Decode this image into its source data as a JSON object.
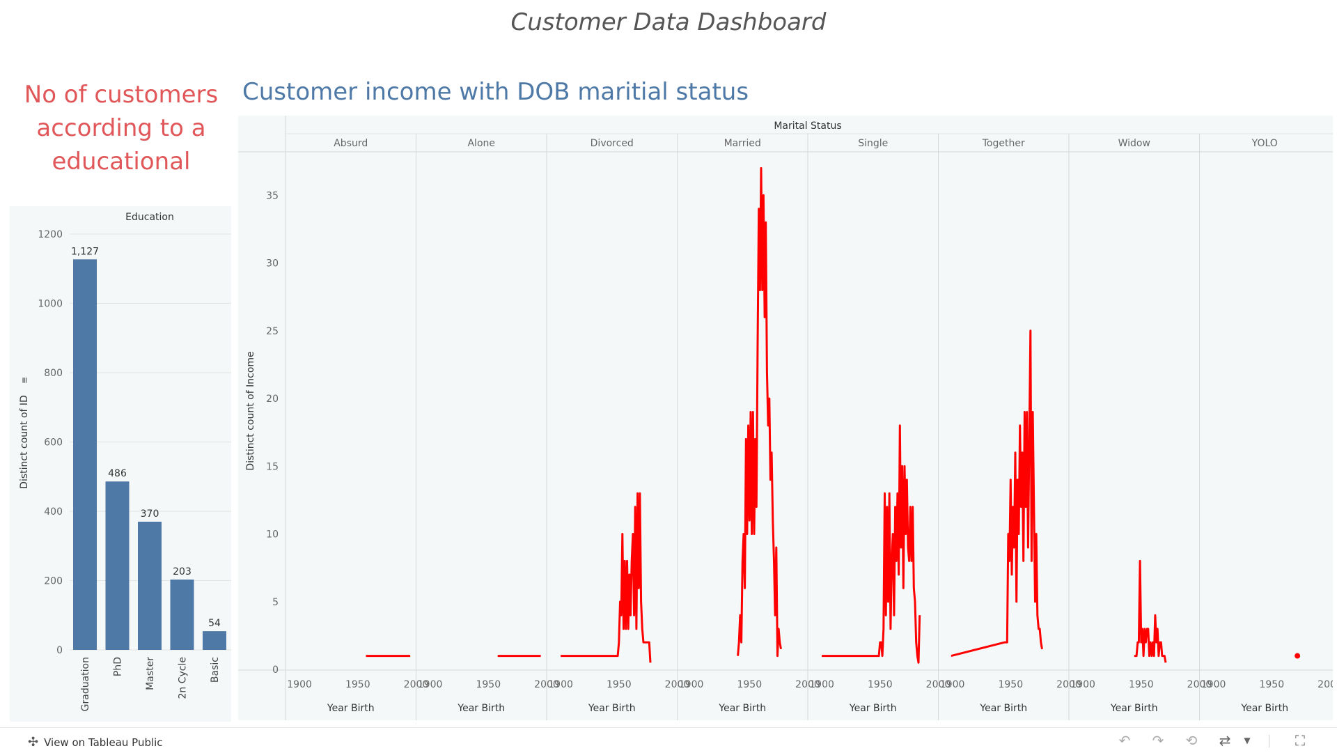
{
  "dashboard": {
    "title": "Customer Data Dashboard",
    "left_title": "No  of customers according to a educational",
    "right_title": "Customer income with DOB maritial status"
  },
  "footer": {
    "tableau_link": "View on Tableau Public",
    "icons": [
      "undo-icon",
      "redo-icon",
      "revert-icon",
      "share-icon",
      "dropdown-icon",
      "fullscreen-icon"
    ]
  },
  "colors": {
    "bar": "#4e79a7",
    "line": "#ff0000",
    "panel_bg": "#f4f8f8",
    "left_title": "#e15759",
    "right_title": "#4e79a7"
  },
  "chart_data": [
    {
      "type": "bar",
      "column_header": "Education",
      "ylabel": "Distinct count of ID",
      "categories": [
        "Graduation",
        "PhD",
        "Master",
        "2n Cycle",
        "Basic"
      ],
      "values": [
        1127,
        486,
        370,
        203,
        54
      ],
      "value_labels": [
        "1,127",
        "486",
        "370",
        "203",
        "54"
      ],
      "ylim": [
        0,
        1200
      ],
      "yticks": [
        0,
        200,
        400,
        600,
        800,
        1000,
        1200
      ],
      "grid": true
    },
    {
      "type": "line",
      "facet_header": "Marital Status",
      "xlabel": "Year Birth",
      "ylabel": "Distinct count of Income",
      "ylim": [
        0,
        38
      ],
      "yticks": [
        0,
        5,
        10,
        15,
        20,
        25,
        30,
        35
      ],
      "xlim": [
        1888,
        2000
      ],
      "xticks": [
        1900,
        1950,
        2000
      ],
      "panels": [
        {
          "name": "Absurd",
          "points": [
            [
              1957,
              1
            ],
            [
              1995,
              1
            ]
          ]
        },
        {
          "name": "Alone",
          "points": [
            [
              1958,
              1
            ],
            [
              1970,
              1
            ],
            [
              1975,
              1
            ],
            [
              1995,
              1
            ]
          ]
        },
        {
          "name": "Divorced",
          "points": [
            [
              1900,
              1
            ],
            [
              1940,
              1
            ],
            [
              1949,
              1
            ],
            [
              1950,
              2
            ],
            [
              1951,
              5
            ],
            [
              1952,
              4
            ],
            [
              1953,
              10
            ],
            [
              1954,
              3
            ],
            [
              1955,
              8
            ],
            [
              1956,
              3
            ],
            [
              1957,
              8
            ],
            [
              1958,
              3
            ],
            [
              1959,
              7
            ],
            [
              1960,
              4
            ],
            [
              1961,
              8
            ],
            [
              1962,
              10
            ],
            [
              1963,
              4
            ],
            [
              1964,
              12
            ],
            [
              1965,
              3
            ],
            [
              1966,
              13
            ],
            [
              1967,
              6
            ],
            [
              1968,
              13
            ],
            [
              1969,
              5
            ],
            [
              1970,
              3
            ],
            [
              1971,
              2
            ],
            [
              1974,
              2
            ],
            [
              1976,
              2
            ],
            [
              1977,
              0.5
            ]
          ]
        },
        {
          "name": "Married",
          "points": [
            [
              1940,
              1
            ],
            [
              1941,
              2
            ],
            [
              1942,
              4
            ],
            [
              1943,
              2
            ],
            [
              1944,
              8
            ],
            [
              1945,
              10
            ],
            [
              1946,
              6
            ],
            [
              1947,
              17
            ],
            [
              1948,
              10
            ],
            [
              1949,
              18
            ],
            [
              1950,
              11
            ],
            [
              1951,
              19
            ],
            [
              1952,
              10
            ],
            [
              1953,
              19
            ],
            [
              1954,
              10
            ],
            [
              1955,
              17
            ],
            [
              1956,
              12
            ],
            [
              1957,
              24
            ],
            [
              1958,
              34
            ],
            [
              1959,
              28
            ],
            [
              1960,
              37
            ],
            [
              1961,
              28
            ],
            [
              1962,
              35
            ],
            [
              1963,
              26
            ],
            [
              1964,
              33
            ],
            [
              1965,
              22
            ],
            [
              1966,
              18
            ],
            [
              1967,
              20
            ],
            [
              1968,
              14
            ],
            [
              1969,
              16
            ],
            [
              1970,
              11
            ],
            [
              1971,
              8
            ],
            [
              1972,
              4
            ],
            [
              1973,
              9
            ],
            [
              1974,
              1
            ],
            [
              1975,
              3
            ],
            [
              1976,
              2
            ],
            [
              1977,
              1.5
            ]
          ]
        },
        {
          "name": "Single",
          "points": [
            [
              1900,
              1
            ],
            [
              1943,
              1
            ],
            [
              1949,
              1
            ],
            [
              1950,
              2
            ],
            [
              1951,
              2
            ],
            [
              1952,
              1
            ],
            [
              1953,
              3
            ],
            [
              1954,
              13
            ],
            [
              1955,
              4
            ],
            [
              1956,
              12
            ],
            [
              1957,
              5
            ],
            [
              1958,
              13
            ],
            [
              1959,
              3
            ],
            [
              1960,
              8
            ],
            [
              1961,
              10
            ],
            [
              1962,
              4
            ],
            [
              1963,
              12
            ],
            [
              1964,
              8
            ],
            [
              1965,
              13
            ],
            [
              1966,
              7
            ],
            [
              1967,
              18
            ],
            [
              1968,
              9
            ],
            [
              1969,
              15
            ],
            [
              1970,
              6
            ],
            [
              1971,
              15
            ],
            [
              1972,
              10
            ],
            [
              1973,
              14
            ],
            [
              1974,
              9
            ],
            [
              1975,
              8
            ],
            [
              1976,
              12
            ],
            [
              1977,
              8
            ],
            [
              1978,
              12
            ],
            [
              1979,
              6
            ],
            [
              1980,
              5
            ],
            [
              1981,
              2
            ],
            [
              1982,
              1
            ],
            [
              1983,
              0.5
            ],
            [
              1984,
              4
            ]
          ]
        },
        {
          "name": "Together",
          "points": [
            [
              1899,
              1
            ],
            [
              1945,
              2
            ],
            [
              1947,
              2
            ],
            [
              1948,
              10
            ],
            [
              1949,
              8
            ],
            [
              1950,
              14
            ],
            [
              1951,
              7
            ],
            [
              1952,
              12
            ],
            [
              1953,
              9
            ],
            [
              1954,
              16
            ],
            [
              1955,
              5
            ],
            [
              1956,
              14
            ],
            [
              1957,
              10
            ],
            [
              1958,
              18
            ],
            [
              1959,
              12
            ],
            [
              1960,
              16
            ],
            [
              1961,
              8
            ],
            [
              1962,
              19
            ],
            [
              1963,
              12
            ],
            [
              1964,
              19
            ],
            [
              1965,
              9
            ],
            [
              1966,
              17
            ],
            [
              1967,
              25
            ],
            [
              1968,
              8
            ],
            [
              1969,
              19
            ],
            [
              1970,
              12
            ],
            [
              1971,
              5
            ],
            [
              1972,
              10
            ],
            [
              1973,
              4
            ],
            [
              1974,
              3
            ],
            [
              1975,
              3
            ],
            [
              1976,
              2
            ],
            [
              1977,
              1.5
            ]
          ]
        },
        {
          "name": "Widow",
          "points": [
            [
              1944,
              1
            ],
            [
              1946,
              1
            ],
            [
              1947,
              2
            ],
            [
              1948,
              2
            ],
            [
              1949,
              8
            ],
            [
              1950,
              2
            ],
            [
              1951,
              3
            ],
            [
              1952,
              1
            ],
            [
              1953,
              3
            ],
            [
              1954,
              2
            ],
            [
              1955,
              3
            ],
            [
              1956,
              3
            ],
            [
              1957,
              1
            ],
            [
              1958,
              2
            ],
            [
              1959,
              1
            ],
            [
              1960,
              2
            ],
            [
              1961,
              1
            ],
            [
              1962,
              4
            ],
            [
              1963,
              2
            ],
            [
              1964,
              3
            ],
            [
              1965,
              1
            ],
            [
              1966,
              2
            ],
            [
              1967,
              2
            ],
            [
              1968,
              1
            ],
            [
              1970,
              1
            ],
            [
              1971,
              0.5
            ]
          ]
        },
        {
          "name": "YOLO",
          "points": [
            [
              1972,
              1
            ]
          ]
        }
      ]
    }
  ]
}
